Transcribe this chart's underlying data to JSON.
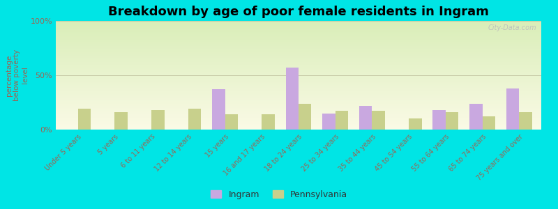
{
  "title": "Breakdown by age of poor female residents in Ingram",
  "ylabel": "percentage\nbelow poverty\nlevel",
  "categories": [
    "Under 5 years",
    "5 years",
    "6 to 11 years",
    "12 to 14 years",
    "15 years",
    "16 and 17 years",
    "18 to 24 years",
    "25 to 34 years",
    "35 to 44 years",
    "45 to 54 years",
    "55 to 64 years",
    "65 to 74 years",
    "75 years and over"
  ],
  "ingram_values": [
    0,
    0,
    0,
    0,
    37,
    0,
    57,
    15,
    22,
    0,
    18,
    24,
    38
  ],
  "pennsylvania_values": [
    19,
    16,
    18,
    19,
    14,
    14,
    24,
    17,
    17,
    10,
    16,
    12,
    16
  ],
  "ingram_color": "#c9a8e0",
  "pennsylvania_color": "#c8d08c",
  "outer_bg": "#00e5e5",
  "ylim": [
    0,
    100
  ],
  "yticks": [
    0,
    50,
    100
  ],
  "ytick_labels": [
    "0%",
    "50%",
    "100%"
  ],
  "legend_ingram": "Ingram",
  "legend_pennsylvania": "Pennsylvania",
  "bar_width": 0.35,
  "title_fontsize": 13,
  "tick_color": "#996655",
  "watermark": "City-Data.com"
}
